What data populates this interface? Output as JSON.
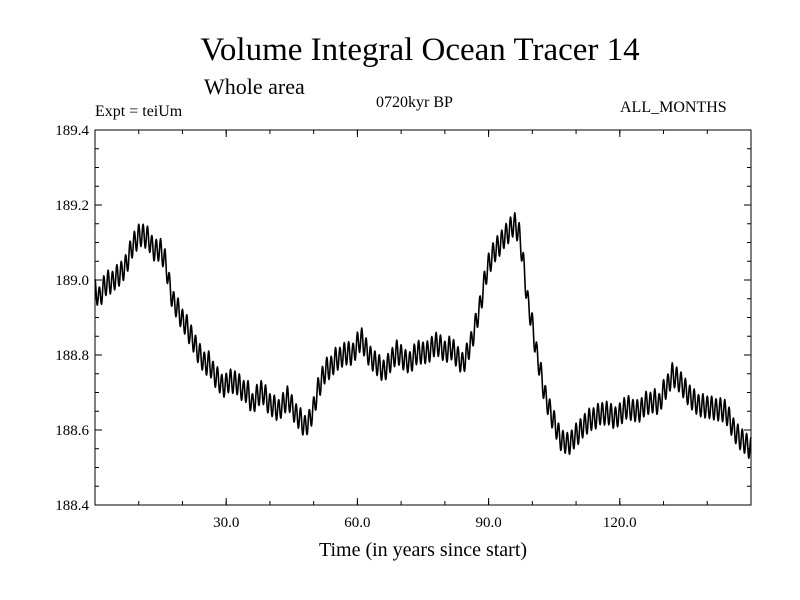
{
  "header": {
    "title": "Volume Integral Ocean Tracer 14",
    "subtitle": "Whole area",
    "left_label": "Expt = teiUm",
    "center_label": "0720kyr BP",
    "right_label": "ALL_MONTHS"
  },
  "chart_data": {
    "type": "line",
    "title": "Volume Integral Ocean Tracer 14",
    "subtitle": "Whole area",
    "xlabel": "Time (in years since start)",
    "ylabel": "",
    "xlim": [
      0,
      150
    ],
    "ylim": [
      188.4,
      189.4
    ],
    "xticks": [
      30.0,
      60.0,
      90.0,
      120.0
    ],
    "xtick_labels": [
      "30.0",
      "60.0",
      "90.0",
      "120.0"
    ],
    "yticks": [
      188.4,
      188.6,
      188.8,
      189.0,
      189.2,
      189.4
    ],
    "ytick_labels": [
      "188.4",
      "188.6",
      "188.8",
      "189.0",
      "189.2",
      "189.4"
    ],
    "grid": false,
    "line_color": "#000000",
    "seasonal_amplitude": 0.03,
    "series": [
      {
        "x": [
          0,
          1,
          2,
          3,
          4,
          5,
          6,
          7,
          8,
          9,
          10,
          11,
          12,
          13,
          14,
          15,
          16,
          17,
          18,
          19,
          20,
          21,
          22,
          23,
          24,
          25,
          26,
          27,
          28,
          29,
          30,
          31,
          32,
          33,
          34,
          35,
          36,
          37,
          38,
          39,
          40,
          41,
          42,
          43,
          44,
          45,
          46,
          47,
          48,
          49,
          50,
          51,
          52,
          53,
          54,
          55,
          56,
          57,
          58,
          59,
          60,
          61,
          62,
          63,
          64,
          65,
          66,
          67,
          68,
          69,
          70,
          71,
          72,
          73,
          74,
          75,
          76,
          77,
          78,
          79,
          80,
          81,
          82,
          83,
          84,
          85,
          86,
          87,
          88,
          89,
          90,
          91,
          92,
          93,
          94,
          95,
          96,
          97,
          98,
          99,
          100,
          101,
          102,
          103,
          104,
          105,
          106,
          107,
          108,
          109,
          110,
          111,
          112,
          113,
          114,
          115,
          116,
          117,
          118,
          119,
          120,
          121,
          122,
          123,
          124,
          125,
          126,
          127,
          128,
          129,
          130,
          131,
          132,
          133,
          134,
          135,
          136,
          137,
          138,
          139,
          140,
          141,
          142,
          143,
          144,
          145,
          146,
          147,
          148,
          149,
          150
        ],
        "values": [
          188.97,
          188.95,
          188.98,
          189.0,
          188.99,
          189.01,
          189.02,
          189.04,
          189.07,
          189.1,
          189.12,
          189.12,
          189.11,
          189.09,
          189.08,
          189.08,
          189.05,
          188.99,
          188.94,
          188.92,
          188.89,
          188.88,
          188.85,
          188.82,
          188.8,
          188.78,
          188.78,
          188.75,
          188.74,
          188.72,
          188.72,
          188.73,
          188.73,
          188.72,
          188.7,
          188.7,
          188.67,
          188.69,
          188.7,
          188.69,
          188.67,
          188.66,
          188.65,
          188.67,
          188.69,
          188.66,
          188.64,
          188.63,
          188.61,
          188.62,
          188.66,
          188.71,
          188.74,
          188.76,
          188.77,
          188.79,
          188.79,
          188.8,
          188.81,
          188.8,
          188.83,
          188.84,
          188.82,
          188.79,
          188.78,
          188.77,
          188.76,
          188.77,
          188.79,
          188.81,
          188.8,
          188.78,
          188.78,
          188.8,
          188.81,
          188.8,
          188.81,
          188.82,
          188.83,
          188.82,
          188.81,
          188.82,
          188.81,
          188.79,
          188.78,
          188.8,
          188.83,
          188.88,
          188.93,
          188.99,
          189.04,
          189.07,
          189.09,
          189.1,
          189.12,
          189.14,
          189.15,
          189.12,
          189.04,
          188.94,
          188.88,
          188.8,
          188.75,
          188.69,
          188.65,
          188.62,
          188.59,
          188.57,
          188.56,
          188.57,
          188.59,
          188.6,
          188.61,
          188.63,
          188.63,
          188.64,
          188.64,
          188.65,
          188.64,
          188.63,
          188.64,
          188.66,
          188.66,
          188.65,
          188.65,
          188.66,
          188.67,
          188.67,
          188.68,
          188.67,
          188.7,
          188.72,
          188.75,
          188.74,
          188.72,
          188.71,
          188.69,
          188.68,
          188.66,
          188.67,
          188.66,
          188.66,
          188.65,
          188.66,
          188.65,
          188.63,
          188.6,
          188.59,
          188.57,
          188.56,
          188.55
        ]
      }
    ]
  }
}
